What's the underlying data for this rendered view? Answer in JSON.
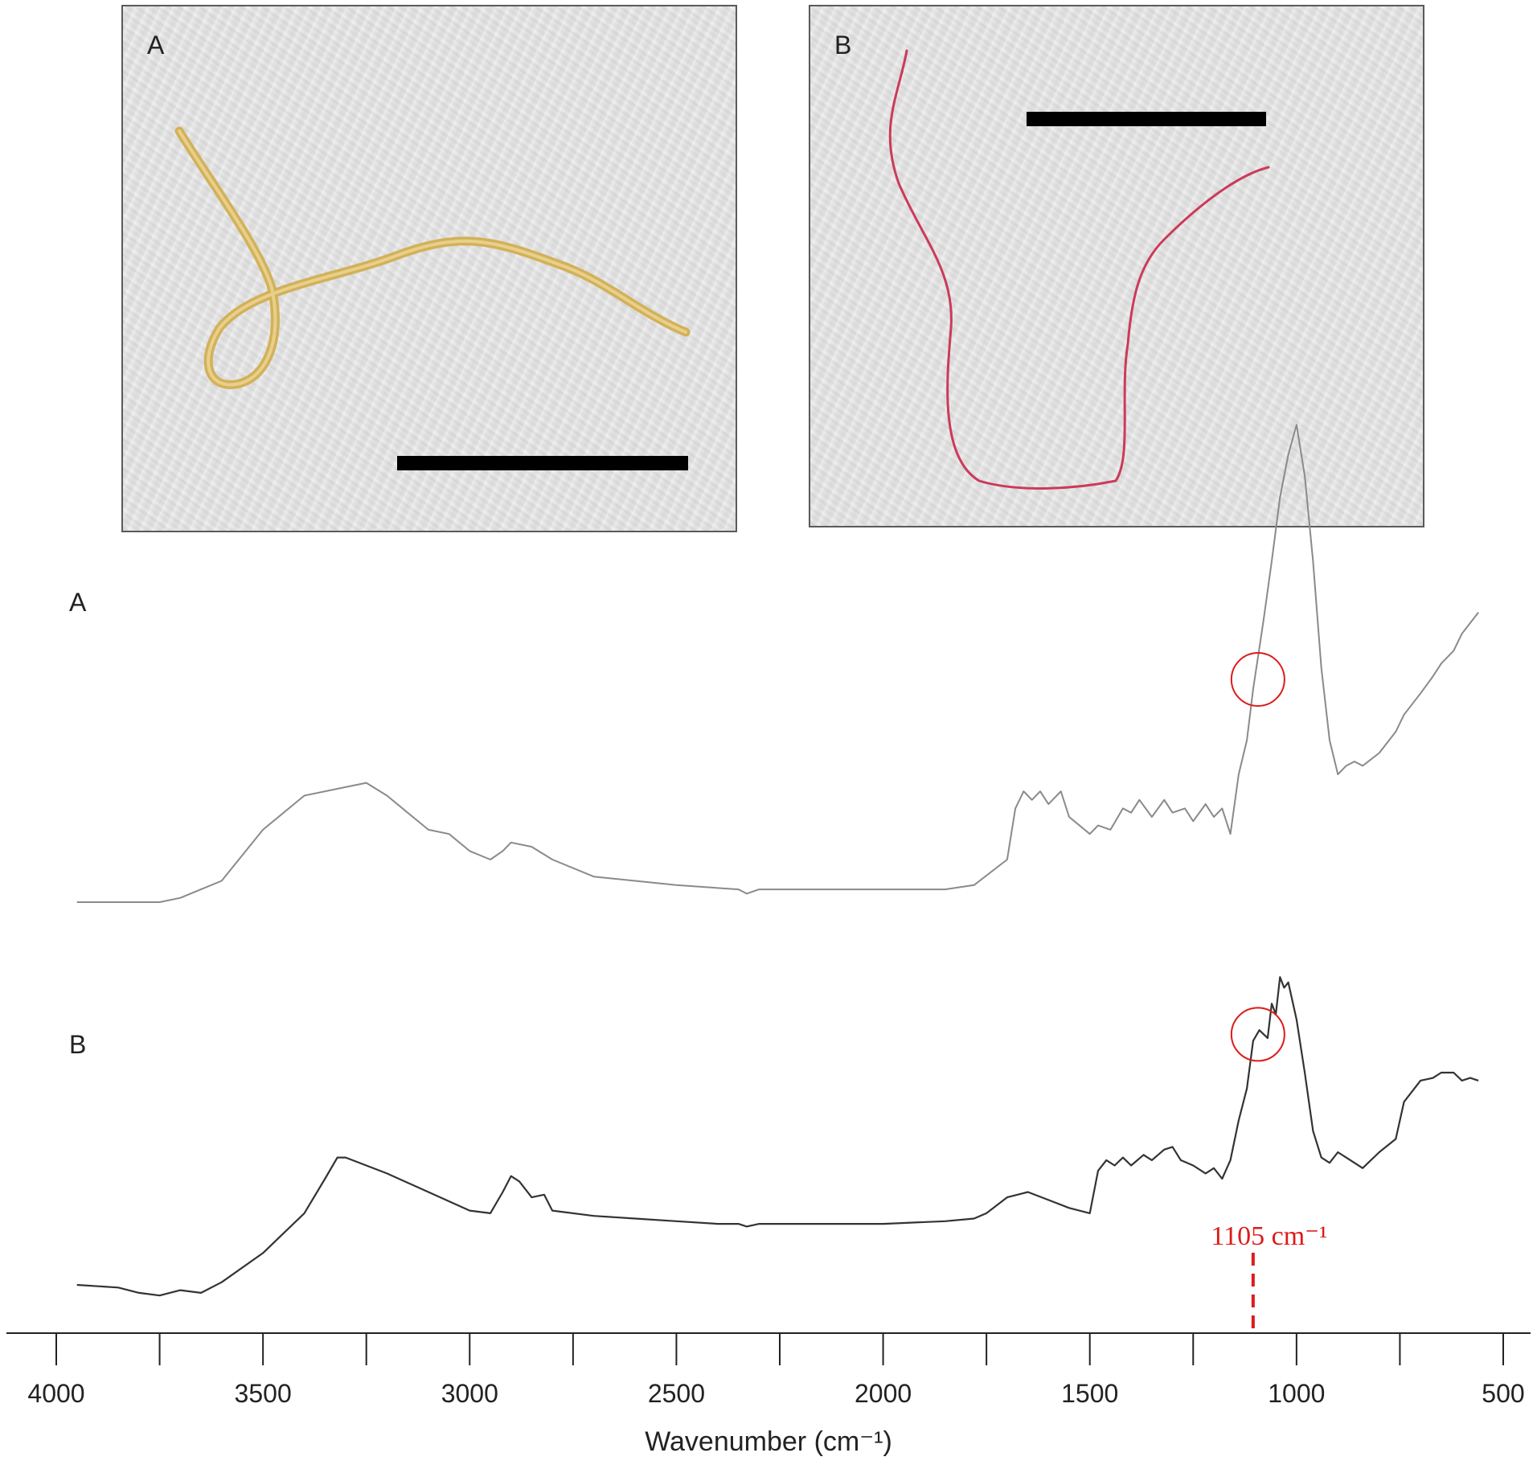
{
  "photos": [
    {
      "label": "A",
      "fiber_color": "#d2b15a"
    },
    {
      "label": "B",
      "fiber_color": "#cc3a5a"
    }
  ],
  "chart_data": {
    "type": "line",
    "xlabel": "Wavenumber (cm⁻¹)",
    "xlim": [
      4000,
      500
    ],
    "x_ticks": [
      4000,
      3500,
      3000,
      2500,
      2000,
      1500,
      1000,
      500
    ],
    "grid": false,
    "series": [
      {
        "name": "A",
        "color": "#8a8a8a",
        "x": [
          3950,
          3750,
          3700,
          3650,
          3600,
          3500,
          3400,
          3300,
          3250,
          3200,
          3150,
          3100,
          3050,
          3000,
          2950,
          2920,
          2900,
          2850,
          2800,
          2700,
          2500,
          2350,
          2330,
          2300,
          2200,
          2000,
          1850,
          1780,
          1700,
          1680,
          1660,
          1640,
          1620,
          1600,
          1570,
          1550,
          1500,
          1480,
          1450,
          1420,
          1400,
          1380,
          1350,
          1320,
          1300,
          1270,
          1250,
          1220,
          1200,
          1180,
          1160,
          1140,
          1120,
          1105,
          1080,
          1060,
          1040,
          1020,
          1000,
          980,
          960,
          940,
          920,
          900,
          880,
          860,
          840,
          800,
          760,
          740,
          700,
          670,
          650,
          620,
          600,
          560
        ],
        "y": [
          0.0,
          0.0,
          0.01,
          0.03,
          0.05,
          0.17,
          0.25,
          0.27,
          0.28,
          0.25,
          0.21,
          0.17,
          0.16,
          0.12,
          0.1,
          0.12,
          0.14,
          0.13,
          0.1,
          0.06,
          0.04,
          0.03,
          0.02,
          0.03,
          0.03,
          0.03,
          0.03,
          0.04,
          0.1,
          0.22,
          0.26,
          0.24,
          0.26,
          0.23,
          0.26,
          0.2,
          0.16,
          0.18,
          0.17,
          0.22,
          0.21,
          0.24,
          0.2,
          0.24,
          0.21,
          0.22,
          0.19,
          0.23,
          0.2,
          0.22,
          0.16,
          0.3,
          0.38,
          0.5,
          0.66,
          0.8,
          0.95,
          1.05,
          1.12,
          1.0,
          0.8,
          0.55,
          0.38,
          0.3,
          0.32,
          0.33,
          0.32,
          0.35,
          0.4,
          0.44,
          0.49,
          0.53,
          0.56,
          0.59,
          0.63,
          0.68
        ]
      },
      {
        "name": "B",
        "color": "#333333",
        "x": [
          3950,
          3850,
          3800,
          3750,
          3700,
          3650,
          3600,
          3500,
          3400,
          3350,
          3320,
          3300,
          3250,
          3200,
          3100,
          3000,
          2950,
          2920,
          2900,
          2880,
          2850,
          2820,
          2800,
          2700,
          2600,
          2500,
          2400,
          2350,
          2330,
          2300,
          2200,
          2000,
          1850,
          1780,
          1750,
          1700,
          1650,
          1600,
          1550,
          1500,
          1480,
          1460,
          1440,
          1420,
          1400,
          1370,
          1350,
          1320,
          1300,
          1280,
          1250,
          1220,
          1200,
          1180,
          1160,
          1140,
          1120,
          1105,
          1090,
          1070,
          1060,
          1050,
          1040,
          1030,
          1020,
          1000,
          980,
          960,
          940,
          920,
          900,
          880,
          860,
          840,
          800,
          760,
          740,
          700,
          670,
          650,
          620,
          600,
          580,
          560
        ],
        "y": [
          0.0,
          -0.01,
          -0.03,
          -0.04,
          -0.02,
          -0.03,
          0.01,
          0.12,
          0.27,
          0.4,
          0.48,
          0.48,
          0.45,
          0.42,
          0.35,
          0.28,
          0.27,
          0.35,
          0.41,
          0.39,
          0.33,
          0.34,
          0.28,
          0.26,
          0.25,
          0.24,
          0.23,
          0.23,
          0.22,
          0.23,
          0.23,
          0.23,
          0.24,
          0.25,
          0.27,
          0.33,
          0.35,
          0.32,
          0.29,
          0.27,
          0.43,
          0.47,
          0.45,
          0.48,
          0.45,
          0.49,
          0.47,
          0.51,
          0.52,
          0.47,
          0.45,
          0.42,
          0.44,
          0.4,
          0.47,
          0.62,
          0.74,
          0.92,
          0.96,
          0.93,
          1.06,
          1.02,
          1.16,
          1.12,
          1.14,
          1.0,
          0.8,
          0.58,
          0.48,
          0.46,
          0.5,
          0.48,
          0.46,
          0.44,
          0.5,
          0.55,
          0.69,
          0.77,
          0.78,
          0.8,
          0.8,
          0.77,
          0.78,
          0.77
        ]
      }
    ],
    "annotations": [
      {
        "type": "circle",
        "series": "A",
        "x": 1105
      },
      {
        "type": "circle",
        "series": "B",
        "x": 1105
      },
      {
        "type": "marker_line",
        "x": 1105,
        "label": "1105 cm⁻¹",
        "color": "#dd1b1b"
      }
    ]
  }
}
